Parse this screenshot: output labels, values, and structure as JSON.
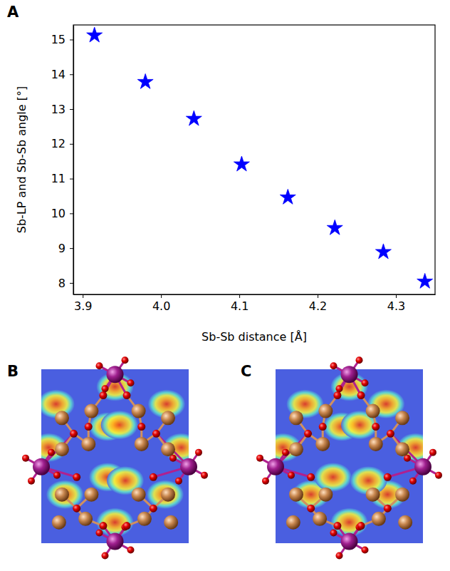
{
  "chart_data": {
    "type": "scatter",
    "x_label": "Sb-Sb distance [Å]",
    "y_label": "Sb-LP and Sb-Sb angle [°]",
    "x": [
      3.915,
      3.98,
      4.042,
      4.103,
      4.162,
      4.222,
      4.284,
      4.337
    ],
    "values": [
      15.12,
      13.78,
      12.72,
      11.41,
      10.46,
      9.58,
      8.89,
      8.04
    ],
    "color": "#0000ff",
    "marker": "star",
    "grid": false,
    "xlim": [
      3.888,
      4.35
    ],
    "ylim": [
      7.67,
      15.42
    ],
    "xticks": [
      3.9,
      {
        "value": 4.0,
        "label": "4.0"
      },
      4.1,
      4.2,
      4.3
    ],
    "yticks": [
      8,
      9,
      10,
      11,
      12,
      13,
      14,
      15
    ]
  },
  "panel_labels": [
    "A",
    "B",
    "C"
  ]
}
